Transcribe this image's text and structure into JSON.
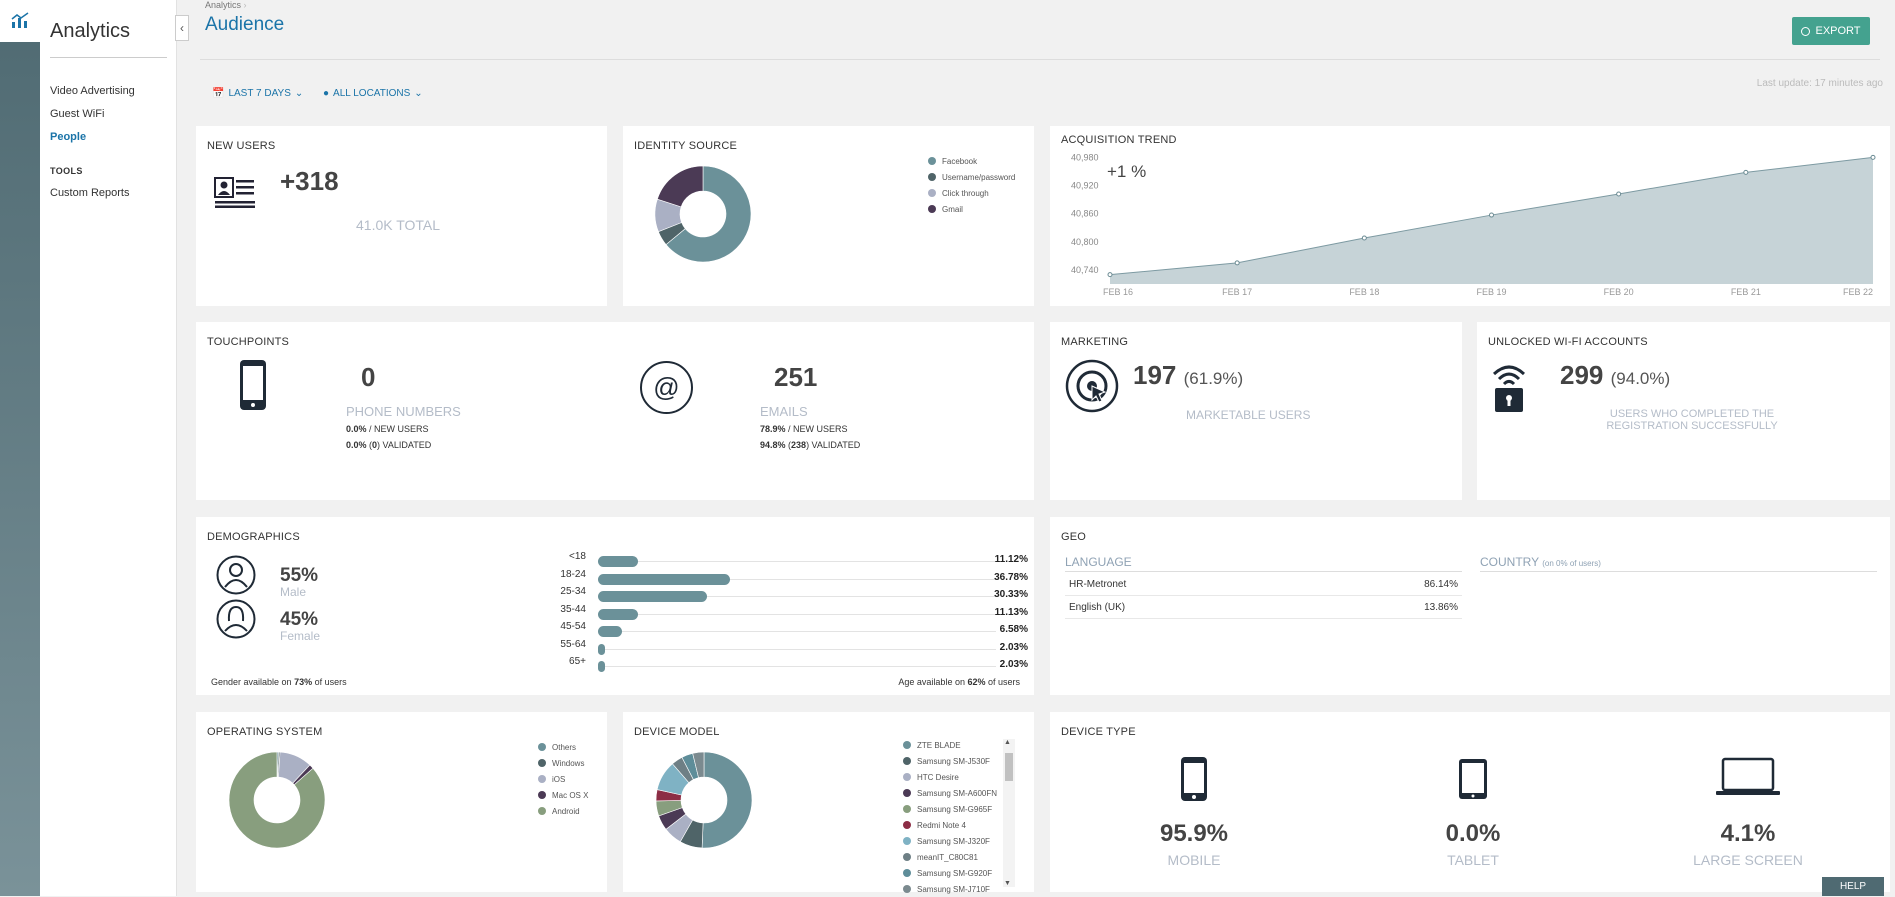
{
  "sidebar": {
    "title": "Analytics",
    "items": [
      {
        "label": "Video Advertising"
      },
      {
        "label": "Guest WiFi"
      },
      {
        "label": "People"
      }
    ],
    "section": "TOOLS",
    "tools": [
      {
        "label": "Custom Reports"
      }
    ]
  },
  "header": {
    "breadcrumb": "Analytics",
    "title": "Audience",
    "export_label": "EXPORT",
    "filter_period": "LAST 7 DAYS",
    "filter_location": "ALL LOCATIONS",
    "last_update": "Last update: 17 minutes ago"
  },
  "new_users": {
    "title": "NEW USERS",
    "value": "+318",
    "total": "41.0K TOTAL"
  },
  "identity_source": {
    "title": "IDENTITY SOURCE",
    "legend": [
      {
        "label": "Facebook",
        "color": "#6b9199"
      },
      {
        "label": "Username/password",
        "color": "#4f6468"
      },
      {
        "label": "Click through",
        "color": "#aab0c4"
      },
      {
        "label": "Gmail",
        "color": "#4b3a55"
      }
    ],
    "chart_data": {
      "type": "pie",
      "labels": [
        "Facebook",
        "Username/password",
        "Click through",
        "Gmail"
      ],
      "values": [
        64,
        5,
        11,
        20
      ]
    }
  },
  "acquisition": {
    "title": "ACQUISITION TREND",
    "change": "+1 %",
    "chart_data": {
      "type": "area",
      "x": [
        "FEB 16",
        "FEB 17",
        "FEB 18",
        "FEB 19",
        "FEB 20",
        "FEB 21",
        "FEB 22"
      ],
      "values": [
        40730,
        40755,
        40808,
        40857,
        40902,
        40948,
        40980
      ],
      "yticks": [
        "40,980",
        "40,920",
        "40,860",
        "40,800",
        "40,740"
      ],
      "ylim": [
        40710,
        41000
      ]
    }
  },
  "touchpoints": {
    "title": "TOUCHPOINTS",
    "phone": {
      "value": "0",
      "label": "PHONE NUMBERS",
      "line1_pct": "0.0%",
      "line1_rest": " / NEW USERS",
      "line2_pct": "0.0%",
      "line2_mid": " (",
      "line2_count": "0",
      "line2_rest": ") VALIDATED"
    },
    "email": {
      "value": "251",
      "label": "EMAILS",
      "line1_pct": "78.9%",
      "line1_rest": " / NEW USERS",
      "line2_pct": "94.8%",
      "line2_mid": " (",
      "line2_count": "238",
      "line2_rest": ") VALIDATED"
    }
  },
  "marketing": {
    "title": "MARKETING",
    "value": "197",
    "pct": "(61.9%)",
    "label": "MARKETABLE USERS"
  },
  "wifi": {
    "title": "UNLOCKED WI-FI ACCOUNTS",
    "value": "299",
    "pct": "(94.0%)",
    "label": "USERS WHO COMPLETED THE REGISTRATION SUCCESSFULLY"
  },
  "demographics": {
    "title": "DEMOGRAPHICS",
    "male_pct": "55%",
    "male_label": "Male",
    "female_pct": "45%",
    "female_label": "Female",
    "gender_note_pre": "Gender available on ",
    "gender_note_pct": "73%",
    "gender_note_post": " of users",
    "age_note_pre": "Age available on ",
    "age_note_pct": "62%",
    "age_note_post": "  of users",
    "chart_data": {
      "type": "bar",
      "categories": [
        "<18",
        "18-24",
        "25-34",
        "35-44",
        "45-54",
        "55-64",
        "65+"
      ],
      "values": [
        11.12,
        36.78,
        30.33,
        11.13,
        6.58,
        2.03,
        2.03
      ],
      "labels": [
        "11.12%",
        "36.78%",
        "30.33%",
        "11.13%",
        "6.58%",
        "2.03%",
        "2.03%"
      ]
    }
  },
  "geo": {
    "title": "GEO",
    "language_header": "LANGUAGE",
    "country_header": "COUNTRY",
    "country_note": "(on 0% of users)",
    "languages": [
      {
        "name": "HR-Metronet",
        "pct": "86.14%"
      },
      {
        "name": "English (UK)",
        "pct": "13.86%"
      }
    ]
  },
  "os": {
    "title": "OPERATING SYSTEM",
    "legend": [
      {
        "label": "Others",
        "color": "#6b9199"
      },
      {
        "label": "Windows",
        "color": "#4f6468"
      },
      {
        "label": "iOS",
        "color": "#aab0c4"
      },
      {
        "label": "Mac OS X",
        "color": "#4b3a55"
      },
      {
        "label": "Android",
        "color": "#889e7e"
      }
    ],
    "chart_data": {
      "type": "pie",
      "labels": [
        "Others",
        "Windows",
        "iOS",
        "Mac OS X",
        "Android"
      ],
      "values": [
        0.5,
        0.5,
        11,
        1.5,
        86.5
      ]
    }
  },
  "device_model": {
    "title": "DEVICE MODEL",
    "legend": [
      {
        "label": "ZTE BLADE",
        "color": "#6b9199"
      },
      {
        "label": "Samsung SM-J530F",
        "color": "#4f6468"
      },
      {
        "label": "HTC Desire",
        "color": "#aab0c4"
      },
      {
        "label": "Samsung SM-A600FN",
        "color": "#4b3a55"
      },
      {
        "label": "Samsung SM-G965F",
        "color": "#889e7e"
      },
      {
        "label": "Redmi Note 4",
        "color": "#8c2d45"
      },
      {
        "label": "Samsung SM-J320F",
        "color": "#7fb2c4"
      },
      {
        "label": "meanIT_C80C81",
        "color": "#6e7f85"
      },
      {
        "label": "Samsung SM-G920F",
        "color": "#5e8d99"
      },
      {
        "label": "Samsung SM-J710F",
        "color": "#7b8a8f"
      }
    ],
    "chart_data": {
      "type": "pie",
      "labels": [
        "ZTE BLADE",
        "Samsung SM-J530F",
        "HTC Desire",
        "Samsung SM-A600FN",
        "Samsung SM-G965F",
        "Redmi Note 4",
        "Samsung SM-J320F",
        "meanIT_C80C81",
        "Samsung SM-G920F",
        "Samsung SM-J710F"
      ],
      "values": [
        40,
        6,
        5,
        4,
        4,
        3,
        8,
        3,
        3,
        3
      ]
    }
  },
  "device_type": {
    "title": "DEVICE TYPE",
    "items": [
      {
        "pct": "95.9%",
        "label": "MOBILE"
      },
      {
        "pct": "0.0%",
        "label": "TABLET"
      },
      {
        "pct": "4.1%",
        "label": "LARGE SCREEN"
      }
    ]
  },
  "help_label": "HELP"
}
